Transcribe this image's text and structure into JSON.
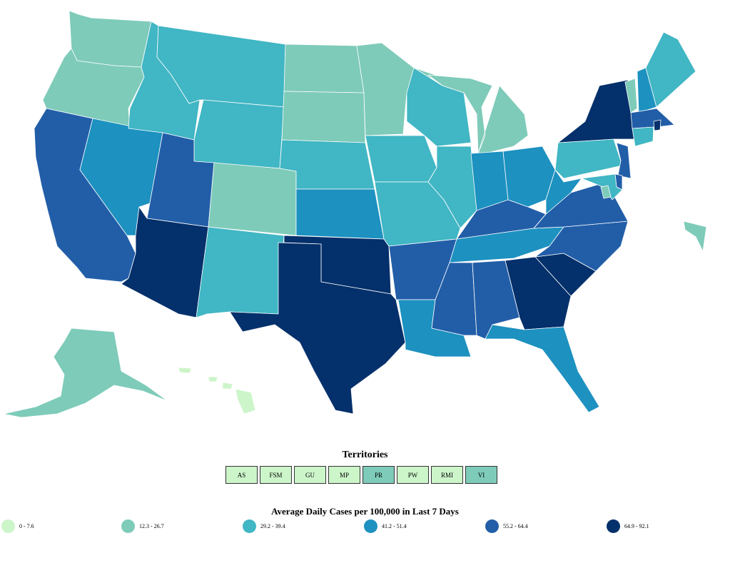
{
  "colors": {
    "c0": "#ccf5c9",
    "c1": "#7ecbb9",
    "c2": "#41b6c4",
    "c3": "#1d91c0",
    "c4": "#225ea8",
    "c5": "#04306b"
  },
  "states": [
    {
      "id": "WA",
      "c": "c1"
    },
    {
      "id": "OR",
      "c": "c1"
    },
    {
      "id": "CA",
      "c": "c4"
    },
    {
      "id": "NV",
      "c": "c3"
    },
    {
      "id": "ID",
      "c": "c2"
    },
    {
      "id": "MT",
      "c": "c2"
    },
    {
      "id": "WY",
      "c": "c2"
    },
    {
      "id": "UT",
      "c": "c4"
    },
    {
      "id": "AZ",
      "c": "c5"
    },
    {
      "id": "CO",
      "c": "c1"
    },
    {
      "id": "NM",
      "c": "c2"
    },
    {
      "id": "ND",
      "c": "c1"
    },
    {
      "id": "SD",
      "c": "c1"
    },
    {
      "id": "NE",
      "c": "c2"
    },
    {
      "id": "KS",
      "c": "c3"
    },
    {
      "id": "OK",
      "c": "c5"
    },
    {
      "id": "TX",
      "c": "c5"
    },
    {
      "id": "MN",
      "c": "c1"
    },
    {
      "id": "IA",
      "c": "c2"
    },
    {
      "id": "MO",
      "c": "c2"
    },
    {
      "id": "AR",
      "c": "c4"
    },
    {
      "id": "LA",
      "c": "c3"
    },
    {
      "id": "WI",
      "c": "c2"
    },
    {
      "id": "IL",
      "c": "c2"
    },
    {
      "id": "MI",
      "c": "c1"
    },
    {
      "id": "IN",
      "c": "c3"
    },
    {
      "id": "OH",
      "c": "c3"
    },
    {
      "id": "KY",
      "c": "c4"
    },
    {
      "id": "TN",
      "c": "c3"
    },
    {
      "id": "MS",
      "c": "c4"
    },
    {
      "id": "AL",
      "c": "c4"
    },
    {
      "id": "GA",
      "c": "c5"
    },
    {
      "id": "FL",
      "c": "c3"
    },
    {
      "id": "SC",
      "c": "c5"
    },
    {
      "id": "NC",
      "c": "c4"
    },
    {
      "id": "VA",
      "c": "c4"
    },
    {
      "id": "WV",
      "c": "c3"
    },
    {
      "id": "PA",
      "c": "c2"
    },
    {
      "id": "NY",
      "c": "c5"
    },
    {
      "id": "VT",
      "c": "c1"
    },
    {
      "id": "NH",
      "c": "c3"
    },
    {
      "id": "ME",
      "c": "c2"
    },
    {
      "id": "MA",
      "c": "c4"
    },
    {
      "id": "RI",
      "c": "c5"
    },
    {
      "id": "CT",
      "c": "c2"
    },
    {
      "id": "NJ",
      "c": "c4"
    },
    {
      "id": "DE",
      "c": "c4"
    },
    {
      "id": "MD",
      "c": "c2"
    },
    {
      "id": "DC",
      "c": "c1"
    },
    {
      "id": "AK",
      "c": "c1"
    },
    {
      "id": "HI",
      "c": "c0"
    }
  ],
  "territories_title": "Territories",
  "territories": [
    {
      "label": "AS",
      "c": "c0"
    },
    {
      "label": "FSM",
      "c": "c0"
    },
    {
      "label": "GU",
      "c": "c0"
    },
    {
      "label": "MP",
      "c": "c0"
    },
    {
      "label": "PR",
      "c": "c1"
    },
    {
      "label": "PW",
      "c": "c0"
    },
    {
      "label": "RMI",
      "c": "c0"
    },
    {
      "label": "VI",
      "c": "c1"
    }
  ],
  "legend_title": "Average Daily Cases per 100,000 in Last 7 Days",
  "legend": [
    {
      "label": "0 - 7.6",
      "c": "c0"
    },
    {
      "label": "12.3 - 26.7",
      "c": "c1"
    },
    {
      "label": "29.2 - 39.4",
      "c": "c2"
    },
    {
      "label": "41.2 - 51.4",
      "c": "c3"
    },
    {
      "label": "55.2 - 64.4",
      "c": "c4"
    },
    {
      "label": "64.9 - 92.1",
      "c": "c5"
    }
  ]
}
